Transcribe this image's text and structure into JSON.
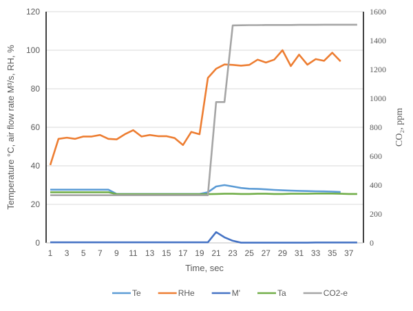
{
  "chart_data": {
    "type": "line",
    "title": "",
    "xlabel": "Time, sec",
    "ylabel": "Temperature °C, air flow rate M³/s, RH, %",
    "y2label": "CO₂, ppm",
    "ylim": [
      0,
      120
    ],
    "y2lim": [
      0,
      1600
    ],
    "yticks": [
      0,
      20,
      40,
      60,
      80,
      100,
      120
    ],
    "y2ticks": [
      0,
      200,
      400,
      600,
      800,
      1000,
      1200,
      1400,
      1600
    ],
    "xticks": [
      1,
      3,
      5,
      7,
      9,
      11,
      13,
      15,
      17,
      19,
      21,
      23,
      25,
      27,
      29,
      31,
      33,
      35,
      37
    ],
    "grid": true,
    "legend": "bottom",
    "series": [
      {
        "name": "Te",
        "color": "#5B9BD5",
        "axis": "left",
        "x_start": 1,
        "values": [
          27.6,
          27.6,
          27.6,
          27.6,
          27.6,
          27.6,
          27.6,
          27.6,
          25.4,
          25.4,
          25.4,
          25.4,
          25.4,
          25.4,
          25.4,
          25.4,
          25.4,
          25.4,
          25.4,
          26.3,
          29.3,
          30.0,
          29.3,
          28.5,
          28.1,
          28.0,
          27.8,
          27.5,
          27.3,
          27.1,
          27.0,
          26.9,
          26.8,
          26.7,
          26.6,
          26.4
        ]
      },
      {
        "name": "RHe",
        "color": "#ED7D31",
        "axis": "left",
        "x_start": 1,
        "values": [
          40.4,
          54.0,
          54.6,
          54.0,
          55.2,
          55.2,
          56.0,
          54.0,
          53.7,
          56.4,
          58.5,
          55.2,
          56.0,
          55.4,
          55.4,
          54.4,
          50.8,
          57.6,
          56.4,
          85.6,
          90.4,
          92.6,
          92.4,
          92.0,
          92.4,
          95.1,
          93.6,
          95.1,
          100.0,
          91.8,
          97.7,
          92.5,
          95.4,
          94.5,
          98.7,
          94.2
        ]
      },
      {
        "name": "M'",
        "color": "#4472C4",
        "axis": "left",
        "x_start": 1,
        "values": [
          0.3,
          0.3,
          0.3,
          0.3,
          0.3,
          0.3,
          0.3,
          0.3,
          0.3,
          0.3,
          0.3,
          0.3,
          0.3,
          0.3,
          0.3,
          0.3,
          0.3,
          0.3,
          0.3,
          0.3,
          5.6,
          2.9,
          1.1,
          0.1,
          0.1,
          0.1,
          0.1,
          0.1,
          0.1,
          0.1,
          0.1,
          0.1,
          0.2,
          0.2,
          0.2,
          0.2,
          0.2,
          0.2
        ]
      },
      {
        "name": "Ta",
        "color": "#70AD47",
        "axis": "left",
        "x_start": 1,
        "values": [
          26.3,
          26.3,
          26.3,
          26.3,
          26.3,
          26.3,
          26.3,
          26.3,
          25.3,
          25.3,
          25.3,
          25.3,
          25.3,
          25.3,
          25.3,
          25.3,
          25.3,
          25.3,
          25.3,
          25.3,
          25.4,
          25.5,
          25.5,
          25.4,
          25.4,
          25.5,
          25.5,
          25.4,
          25.4,
          25.5,
          25.5,
          25.5,
          25.6,
          25.6,
          25.6,
          25.5,
          25.4,
          25.4
        ]
      },
      {
        "name": "CO2-e",
        "color": "#A5A5A5",
        "axis": "right",
        "x_start": 1,
        "values": [
          330,
          330,
          330,
          330,
          330,
          330,
          330,
          330,
          330,
          330,
          330,
          330,
          330,
          330,
          330,
          330,
          330,
          330,
          330,
          330,
          975,
          975,
          1505,
          1506,
          1507,
          1507,
          1508,
          1508,
          1508,
          1508,
          1509,
          1509,
          1509,
          1510,
          1510,
          1510,
          1510,
          1510
        ]
      }
    ]
  }
}
